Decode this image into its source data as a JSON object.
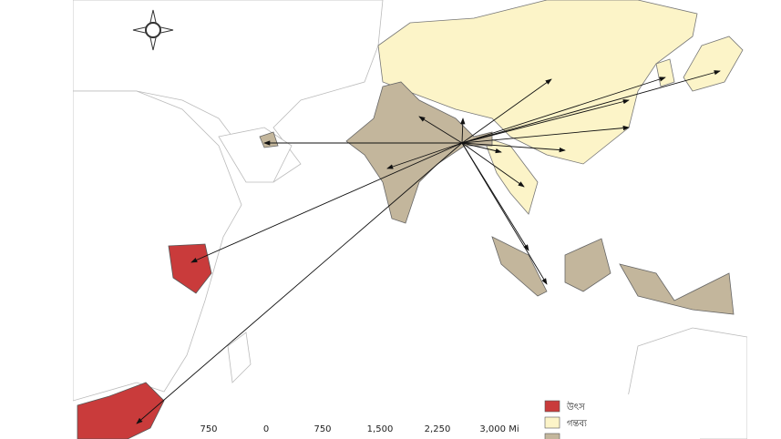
{
  "scale_bar": {
    "labels": [
      "750",
      "0",
      "750",
      "1,500",
      "2,250",
      "3,000 Mi"
    ]
  },
  "legend": [
    {
      "name": "উৎস",
      "color": "#c93b3b"
    },
    {
      "name": "গন্তব্য",
      "color": "#fcf4c8"
    },
    {
      "color": "#c3b69c"
    }
  ]
}
